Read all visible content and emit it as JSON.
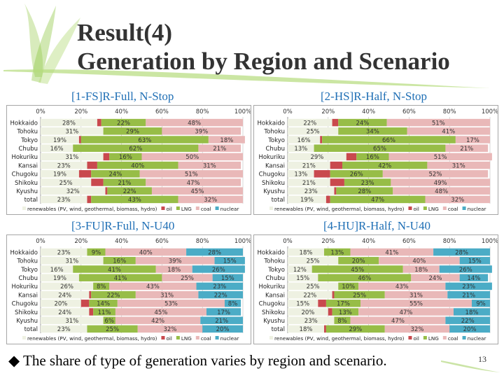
{
  "slide": {
    "title_line1": "Result(4)",
    "title_line2": "Generation by Region and Scenario",
    "footer_bullet": "◆",
    "footer_text": "The share of type of generation varies by region and scenario.",
    "page_number": "13"
  },
  "legend": {
    "items": [
      {
        "label": "renewables (PV, wind, geothermal, biomass, hydro)",
        "color": "#eef1e2"
      },
      {
        "label": "oil",
        "color": "#c9494e"
      },
      {
        "label": "LNG",
        "color": "#97bd47"
      },
      {
        "label": "coal",
        "color": "#e9b8b8"
      },
      {
        "label": "nuclear",
        "color": "#4bacc6"
      }
    ]
  },
  "chart_data": [
    {
      "type": "bar",
      "orientation": "horizontal-stacked-100",
      "title": "[1-FS]R-Full, N-Stop",
      "categories": [
        "Hokkaido",
        "Tohoku",
        "Tokyo",
        "Chubu",
        "Hokuriku",
        "Kansai",
        "Chugoku",
        "Shikoku",
        "Kyushu",
        "total"
      ],
      "xticks": [
        "0%",
        "20%",
        "40%",
        "60%",
        "80%",
        "100%"
      ],
      "xlim": [
        0,
        100
      ],
      "series": [
        {
          "name": "renewables (PV, wind, geothermal, biomass, hydro)",
          "values": [
            28,
            31,
            19,
            16,
            31,
            23,
            19,
            25,
            32,
            23
          ],
          "labels": [
            "28%",
            "31%",
            "19%",
            "16%",
            "31%",
            "23%",
            "19%",
            "25%",
            "32%",
            "23%"
          ]
        },
        {
          "name": "oil",
          "values": [
            2,
            0,
            1,
            0,
            3,
            5,
            6,
            6,
            1,
            2
          ],
          "labels": [
            "",
            "",
            "",
            "",
            "",
            "",
            "",
            "",
            "",
            ""
          ]
        },
        {
          "name": "LNG",
          "values": [
            22,
            29,
            63,
            62,
            16,
            40,
            24,
            21,
            22,
            43
          ],
          "labels": [
            "22%",
            "29%",
            "63%",
            "62%",
            "16%",
            "40%",
            "24%",
            "21%",
            "22%",
            "43%"
          ]
        },
        {
          "name": "coal",
          "values": [
            48,
            39,
            18,
            21,
            50,
            31,
            51,
            47,
            45,
            32
          ],
          "labels": [
            "48%",
            "39%",
            "18%",
            "21%",
            "50%",
            "31%",
            "51%",
            "47%",
            "45%",
            "32%"
          ]
        },
        {
          "name": "nuclear",
          "values": [
            0,
            0,
            0,
            0,
            0,
            0,
            0,
            0,
            0,
            0
          ],
          "labels": [
            "",
            "",
            "",
            "",
            "",
            "",
            "",
            "",
            "",
            ""
          ]
        }
      ]
    },
    {
      "type": "bar",
      "orientation": "horizontal-stacked-100",
      "title": "[2-HS]R-Half, N-Stop",
      "categories": [
        "Hokkaido",
        "Tohoku",
        "Tokyo",
        "Chubu",
        "Hokuriku",
        "Kansai",
        "Chugoku",
        "Shikoku",
        "Kyushu",
        "total"
      ],
      "xticks": [
        "0%",
        "20%",
        "40%",
        "60%",
        "80%",
        "100%"
      ],
      "xlim": [
        0,
        100
      ],
      "series": [
        {
          "name": "renewables (PV, wind, geothermal, biomass, hydro)",
          "values": [
            22,
            25,
            16,
            13,
            29,
            21,
            13,
            21,
            23,
            19
          ],
          "labels": [
            "22%",
            "25%",
            "16%",
            "13%",
            "29%",
            "21%",
            "13%",
            "21%",
            "23%",
            "19%"
          ]
        },
        {
          "name": "oil",
          "values": [
            3,
            0,
            1,
            0,
            5,
            6,
            8,
            7,
            1,
            2
          ],
          "labels": [
            "",
            "",
            "",
            "",
            "",
            "",
            "",
            "",
            "",
            ""
          ]
        },
        {
          "name": "LNG",
          "values": [
            24,
            34,
            66,
            65,
            16,
            42,
            26,
            23,
            28,
            47
          ],
          "labels": [
            "24%",
            "34%",
            "66%",
            "65%",
            "16%",
            "42%",
            "26%",
            "23%",
            "28%",
            "47%"
          ]
        },
        {
          "name": "coal",
          "values": [
            51,
            41,
            17,
            21,
            51,
            31,
            52,
            49,
            48,
            32
          ],
          "labels": [
            "51%",
            "41%",
            "17%",
            "21%",
            "51%",
            "31%",
            "52%",
            "49%",
            "48%",
            "32%"
          ]
        },
        {
          "name": "nuclear",
          "values": [
            0,
            0,
            0,
            0,
            0,
            0,
            0,
            0,
            0,
            0
          ],
          "labels": [
            "",
            "",
            "",
            "",
            "",
            "",
            "",
            "",
            "",
            ""
          ]
        }
      ]
    },
    {
      "type": "bar",
      "orientation": "horizontal-stacked-100",
      "title": "[3-FU]R-Full, N-U40",
      "categories": [
        "Hokkaido",
        "Tohoku",
        "Tokyo",
        "Chubu",
        "Hokuriku",
        "Kansai",
        "Chugoku",
        "Shikoku",
        "Kyushu",
        "total"
      ],
      "xticks": [
        "0%",
        "20%",
        "40%",
        "60%",
        "80%",
        "100%"
      ],
      "xlim": [
        0,
        100
      ],
      "series": [
        {
          "name": "renewables (PV, wind, geothermal, biomass, hydro)",
          "values": [
            23,
            31,
            16,
            19,
            26,
            24,
            20,
            24,
            31,
            23
          ],
          "labels": [
            "23%",
            "31%",
            "16%",
            "19%",
            "26%",
            "24%",
            "20%",
            "24%",
            "31%",
            "23%"
          ]
        },
        {
          "name": "oil",
          "values": [
            0,
            0,
            0,
            0,
            0,
            1,
            4,
            2,
            0,
            0
          ],
          "labels": [
            "",
            "",
            "",
            "",
            "",
            "",
            "",
            "",
            "",
            ""
          ]
        },
        {
          "name": "LNG",
          "values": [
            9,
            16,
            41,
            41,
            8,
            22,
            14,
            11,
            6,
            25
          ],
          "labels": [
            "9%",
            "16%",
            "41%",
            "41%",
            "8%",
            "22%",
            "14%",
            "11%",
            "6%",
            "25%"
          ]
        },
        {
          "name": "coal",
          "values": [
            40,
            39,
            18,
            25,
            43,
            31,
            53,
            45,
            42,
            32
          ],
          "labels": [
            "40%",
            "39%",
            "18%",
            "25%",
            "43%",
            "31%",
            "53%",
            "45%",
            "42%",
            "32%"
          ]
        },
        {
          "name": "nuclear",
          "values": [
            28,
            15,
            26,
            15,
            23,
            22,
            8,
            17,
            21,
            20
          ],
          "labels": [
            "28%",
            "15%",
            "26%",
            "15%",
            "23%",
            "22%",
            "8%",
            "17%",
            "21%",
            "20%"
          ]
        }
      ]
    },
    {
      "type": "bar",
      "orientation": "horizontal-stacked-100",
      "title": "[4-HU]R-Half, N-U40",
      "categories": [
        "Hokkaido",
        "Tohoku",
        "Tokyo",
        "Chubu",
        "Hokuriku",
        "Kansai",
        "Chugoku",
        "Shikoku",
        "Kyushu",
        "total"
      ],
      "xticks": [
        "0%",
        "20%",
        "40%",
        "60%",
        "80%",
        "100%"
      ],
      "xlim": [
        0,
        100
      ],
      "series": [
        {
          "name": "renewables (PV, wind, geothermal, biomass, hydro)",
          "values": [
            18,
            25,
            12,
            15,
            25,
            22,
            15,
            20,
            23,
            18
          ],
          "labels": [
            "18%",
            "25%",
            "12%",
            "15%",
            "25%",
            "22%",
            "15%",
            "20%",
            "23%",
            "18%"
          ]
        },
        {
          "name": "oil",
          "values": [
            0,
            0,
            0,
            0,
            0,
            1,
            4,
            2,
            0,
            1
          ],
          "labels": [
            "",
            "",
            "",
            "",
            "",
            "",
            "",
            "",
            "",
            ""
          ]
        },
        {
          "name": "LNG",
          "values": [
            13,
            20,
            45,
            46,
            10,
            25,
            17,
            13,
            8,
            29
          ],
          "labels": [
            "13%",
            "20%",
            "45%",
            "46%",
            "10%",
            "25%",
            "17%",
            "13%",
            "8%",
            "29%"
          ]
        },
        {
          "name": "coal",
          "values": [
            41,
            40,
            18,
            24,
            43,
            31,
            55,
            47,
            47,
            32
          ],
          "labels": [
            "41%",
            "40%",
            "18%",
            "24%",
            "43%",
            "31%",
            "55%",
            "47%",
            "47%",
            "32%"
          ]
        },
        {
          "name": "nuclear",
          "values": [
            28,
            15,
            26,
            14,
            23,
            21,
            9,
            18,
            22,
            20
          ],
          "labels": [
            "28%",
            "15%",
            "26%",
            "14%",
            "23%",
            "21%",
            "9%",
            "18%",
            "22%",
            "20%"
          ]
        }
      ]
    }
  ]
}
